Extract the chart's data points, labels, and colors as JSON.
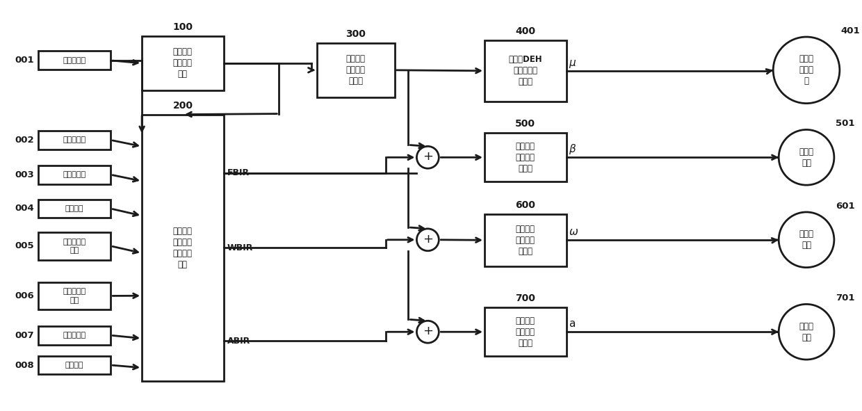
{
  "bg_color": "#ffffff",
  "box_color": "#ffffff",
  "box_edge": "#1a1a1a",
  "arrow_color": "#1a1a1a",
  "text_color": "#1a1a1a",
  "lw": 2.0,
  "input_items": [
    {
      "id": "001",
      "label": "负荷目标值",
      "yf": 0.845,
      "tall": false
    },
    {
      "id": "002",
      "label": "负荷设定值",
      "yf": 0.62,
      "tall": false
    },
    {
      "id": "003",
      "label": "变负荷速率",
      "yf": 0.53,
      "tall": false
    },
    {
      "id": "004",
      "label": "供热流量",
      "yf": 0.44,
      "tall": false
    },
    {
      "id": "005",
      "label": "上汽压力设\n定值",
      "yf": 0.34,
      "tall": true
    },
    {
      "id": "006",
      "label": "主汽压力实\n际值",
      "yf": 0.215,
      "tall": true
    },
    {
      "id": "007",
      "label": "凝汽器真空",
      "yf": 0.11,
      "tall": false
    },
    {
      "id": "008",
      "label": "实际负荷",
      "yf": 0.04,
      "tall": false
    }
  ],
  "block100": {
    "label": "机组负荷\n指令计算\n单元",
    "num": "100"
  },
  "block200": {
    "label": "锅炉动态\n前馈微分\n指令计算\n单元",
    "num": "200"
  },
  "block300": {
    "label": "汽轮机调\n阀开度计\n算单元",
    "num": "300"
  },
  "block400": {
    "label": "汽轮机DEH\n电液调节计\n算单元",
    "num": "400"
  },
  "block500": {
    "label": "锅炉给煤\n法指令计\n算单元",
    "num": "500"
  },
  "block600": {
    "label": "锅炉给水\n量指令计\n算单元",
    "num": "600"
  },
  "block700": {
    "label": "锅炉送风\n法指令计\n算单元",
    "num": "700"
  },
  "circle401": {
    "label": "汽轮机\n调节阀\n组",
    "num": "401"
  },
  "circle501": {
    "label": "给煤机\n电机",
    "num": "501"
  },
  "circle601": {
    "label": "锅炉给\n水泵",
    "num": "601"
  },
  "circle701": {
    "label": "送风机\n电机",
    "num": "701"
  },
  "labels": {
    "fbir": "FBIR",
    "wbir": "WBIR",
    "abir": "ABIR",
    "mu": "μ",
    "beta": "β",
    "omega": "ω",
    "a": "a"
  }
}
